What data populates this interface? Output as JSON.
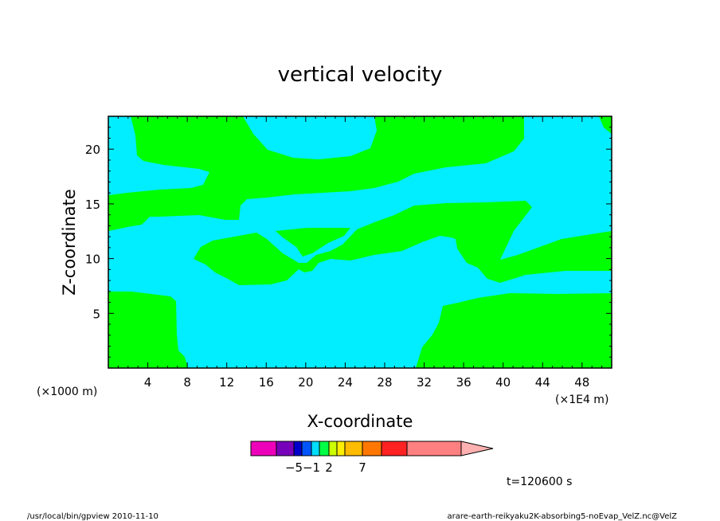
{
  "chart_data": {
    "type": "contour",
    "title": "vertical velocity",
    "xlabel": "X-coordinate",
    "ylabel": "Z-coordinate",
    "x_unit_label": "(×1000 m)",
    "x_secondary_label": "(×1E4 m)",
    "xlim": [
      0,
      51
    ],
    "ylim": [
      0,
      23
    ],
    "x_ticks": [
      4,
      8,
      12,
      16,
      20,
      24,
      28,
      32,
      36,
      40,
      44,
      48
    ],
    "y_ticks": [
      5,
      10,
      15,
      20
    ],
    "colors": {
      "positive": "#00ff00",
      "negative": "#00eeff",
      "frame": "#000000"
    },
    "colorbar": {
      "colors": [
        "#ee00bb",
        "#7700bb",
        "#0000cc",
        "#0055ff",
        "#00ddff",
        "#00ff44",
        "#ccff00",
        "#ffee00",
        "#ffbb00",
        "#ff7700",
        "#ff2222",
        "#ff8080"
      ],
      "extension_color": "#ffb0b0",
      "tick_labels": [
        {
          "slot": 2,
          "label": "−5"
        },
        {
          "slot": 4,
          "label": "−1"
        },
        {
          "slot": 6,
          "label": "2"
        },
        {
          "slot": 9,
          "label": "7"
        }
      ]
    },
    "time_label": "t=120600 s"
  },
  "footer": {
    "left": "/usr/local/bin/gpview   2010-11-10",
    "right": "arare-earth-reikyaku2K-absorbing5-noEvap_VelZ.nc@VelZ"
  }
}
